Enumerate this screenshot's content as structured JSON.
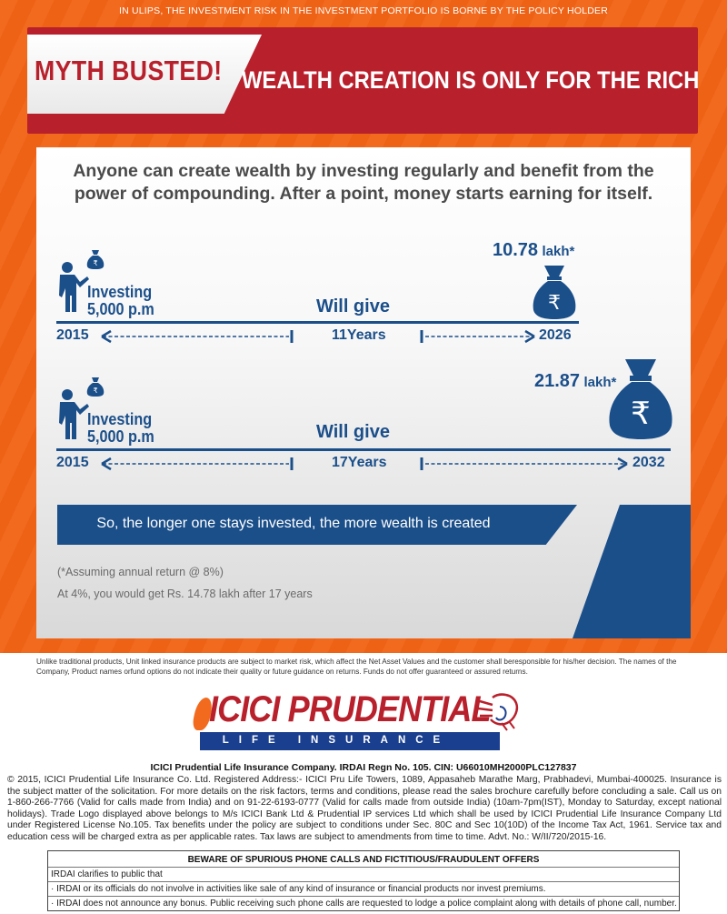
{
  "top_disclaimer": "IN ULIPS, THE INVESTMENT RISK IN THE INVESTMENT PORTFOLIO IS BORNE BY THE POLICY HOLDER",
  "banner": {
    "myth": "MYTH BUSTED!",
    "headline": "WEALTH CREATION IS ONLY FOR THE RICH"
  },
  "intro": "Anyone can create wealth by investing regularly and benefit from the power of compounding. After a point, money starts earning for itself.",
  "scenarios": [
    {
      "investing_line1": "Investing",
      "investing_line2": "5,000 p.m",
      "will_give": "Will give",
      "amount_value": "10.78",
      "amount_unit": "lakh*",
      "start_year": "2015",
      "end_year": "2026",
      "duration": "11Years"
    },
    {
      "investing_line1": "Investing",
      "investing_line2": "5,000 p.m",
      "will_give": "Will give",
      "amount_value": "21.87",
      "amount_unit": "lakh*",
      "start_year": "2015",
      "end_year": "2032",
      "duration": "17Years"
    }
  ],
  "conclusion": "So, the longer one stays invested, the more wealth is created",
  "footnote_assumption": "(*Assuming annual return @ 8%)",
  "footnote_alt": "At 4%, you would get Rs. 14.78 lakh after 17 years",
  "risk_disclaimer": "Unlike traditional products, Unit linked insurance products are subject to market risk, which affect the Net Asset Values and the customer shall beresponsible for his/her decision. The names of the Company, Product names orfund options do not indicate their quality or future guidance on returns. Funds do not offer guaranteed or assured returns.",
  "logo": {
    "brand": "ICICI PRUDENTIAL",
    "tagline": "LIFE INSURANCE"
  },
  "company_line": "ICICI Prudential Life Insurance Company. IRDAI Regn No. 105. CIN: U66010MH2000PLC127837",
  "legal_text": "© 2015, ICICI Prudential Life Insurance Co. Ltd. Registered Address:- ICICI Pru Life Towers, 1089, Appasaheb Marathe Marg, Prabhadevi, Mumbai-400025. Insurance is the subject matter of the solicitation. For more details on the risk factors, terms and conditions, please read the sales brochure carefully before concluding a sale. Call us on 1-860-266-7766 (Valid for calls made from India) and on 91-22-6193-0777 (Valid for calls made from outside India) (10am-7pm(IST), Monday to Saturday, except national holidays). Trade Logo displayed above belongs to M/s ICICI Bank Ltd & Prudential IP services Ltd which shall be used by ICICI Prudential Life Insurance Company Ltd under Registered License No.105. Tax benefits under the policy are subject to conditions under Sec. 80C and Sec 10(10D) of the Income Tax Act, 1961. Service tax and education cess will be charged extra as per applicable rates. Tax laws are subject to amendments from time to time. Advt. No.: W/II/720/2015-16.",
  "beware": {
    "title": "BEWARE OF SPURIOUS PHONE CALLS AND FICTITIOUS/FRAUDULENT OFFERS",
    "line1": "IRDAI clarifies to public that",
    "line2": "· IRDAI or its officials do not involve in activities like sale of any kind of insurance or financial products nor invest premiums.",
    "line3": "· IRDAI does not announce any bonus. Public receiving such phone calls are requested to lodge a police complaint along with details of phone call, number."
  },
  "colors": {
    "orange": "#f26a1e",
    "red": "#b8202c",
    "blue": "#1b4f8a"
  },
  "icons": [
    "person-icon",
    "money-bag-icon",
    "rupee-icon",
    "arrow-left-icon",
    "arrow-right-icon"
  ]
}
